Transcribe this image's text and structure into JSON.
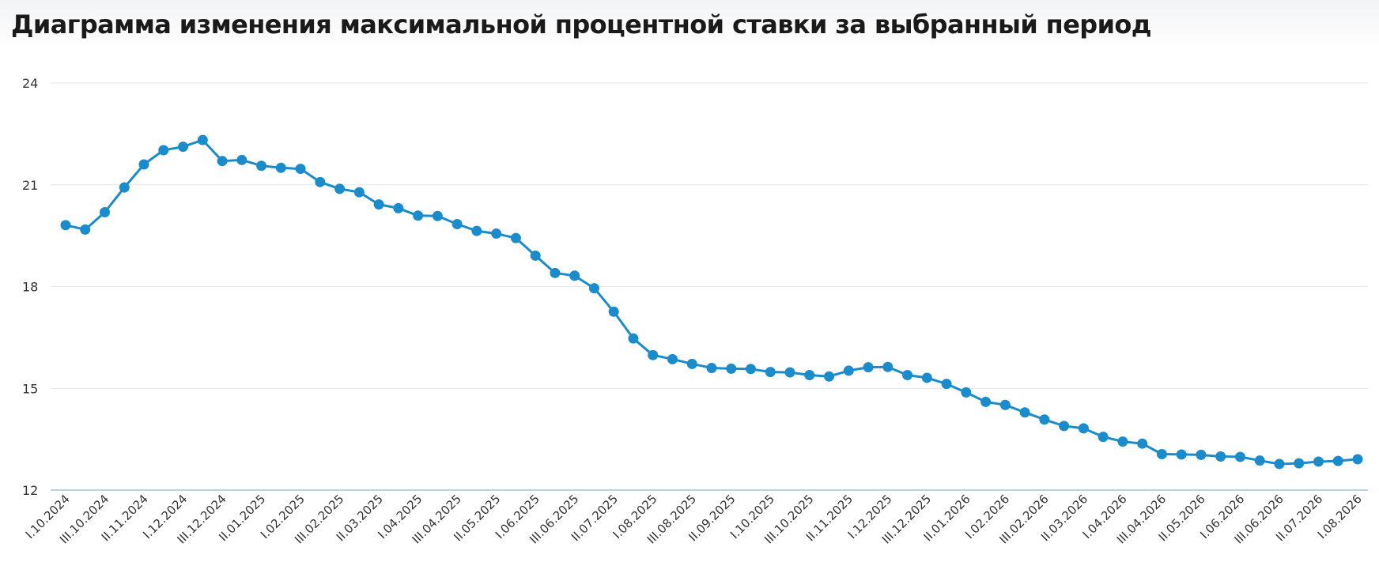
{
  "title": "Диаграмма изменения максимальной процентной ставки за выбранный период",
  "colors": {
    "series": "#1a8ccc",
    "grid": "#e3e6ea",
    "baseline": "#b9cfe8",
    "text": "#333333"
  },
  "chart_data": {
    "type": "line",
    "title": "Диаграмма изменения максимальной процентной ставки за выбранный период",
    "xlabel": "",
    "ylabel": "",
    "ylim": [
      12,
      24
    ],
    "yticks": [
      12,
      15,
      18,
      21,
      24
    ],
    "grid": true,
    "legend": "none",
    "x_tick_labels": [
      "I.10.2024",
      "III.10.2024",
      "II.11.2024",
      "I.12.2024",
      "III.12.2024",
      "II.01.2025",
      "I.02.2025",
      "III.02.2025",
      "II.03.2025",
      "I.04.2025",
      "III.04.2025",
      "II.05.2025",
      "I.06.2025",
      "III.06.2025",
      "II.07.2025",
      "I.08.2025",
      "III.08.2025",
      "II.09.2025",
      "I.10.2025",
      "III.10.2025",
      "II.11.2025",
      "I.12.2025",
      "III.12.2025",
      "II.01.2026",
      "I.02.2026",
      "III.02.2026",
      "II.03.2026",
      "I.04.2026",
      "III.04.2026",
      "II.05.2026",
      "I.06.2026",
      "III.06.2026",
      "II.07.2026",
      "I.08.2026"
    ],
    "series": [
      {
        "values": [
          19.81,
          19.68,
          20.19,
          20.92,
          21.6,
          22.02,
          22.12,
          22.32,
          21.7,
          21.73,
          21.56,
          21.5,
          21.47,
          21.08,
          20.88,
          20.78,
          20.42,
          20.31,
          20.09,
          20.08,
          19.84,
          19.64,
          19.56,
          19.43,
          18.91,
          18.4,
          18.32,
          17.95,
          17.26,
          16.47,
          15.98,
          15.86,
          15.72,
          15.6,
          15.58,
          15.57,
          15.48,
          15.47,
          15.39,
          15.35,
          15.52,
          15.62,
          15.63,
          15.39,
          15.31,
          15.13,
          14.88,
          14.6,
          14.51,
          14.29,
          14.08,
          13.89,
          13.82,
          13.57,
          13.43,
          13.37,
          13.06,
          13.05,
          13.04,
          12.99,
          12.98,
          12.87,
          12.77,
          12.79,
          12.84,
          12.86,
          12.91
        ]
      }
    ]
  }
}
